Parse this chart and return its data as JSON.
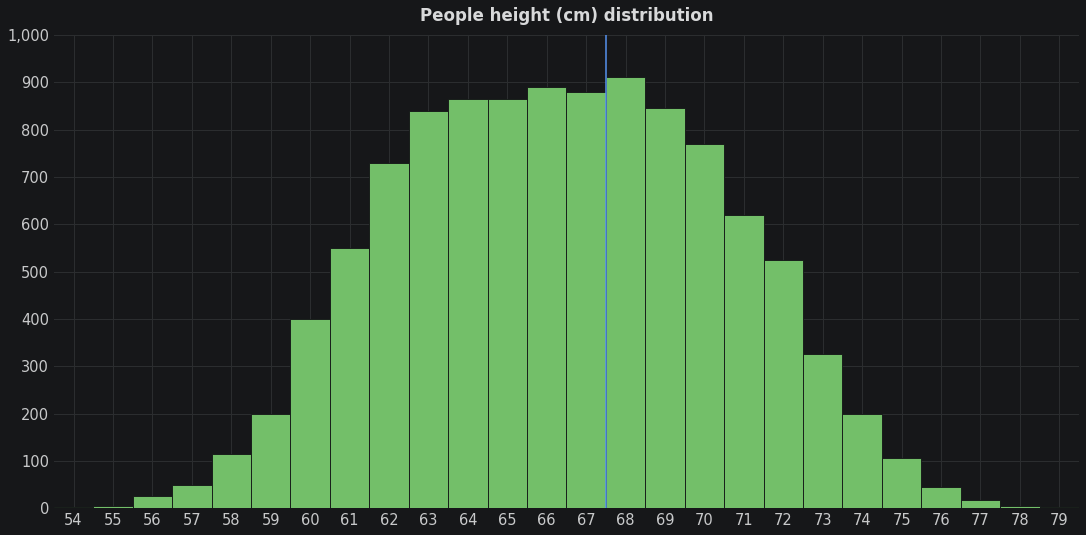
{
  "title": "People height (cm) distribution",
  "background_color": "#161719",
  "bar_color": "#73bf69",
  "bar_edge_color": "#111214",
  "grid_color": "#2c2e30",
  "text_color": "#c8c9ca",
  "title_color": "#d8d9da",
  "centers": [
    54,
    55,
    56,
    57,
    58,
    59,
    60,
    61,
    62,
    63,
    64,
    65,
    66,
    67,
    68,
    69,
    70,
    71,
    72,
    73,
    74,
    75,
    76,
    77,
    78,
    79
  ],
  "values": [
    2,
    5,
    25,
    50,
    115,
    200,
    400,
    550,
    730,
    840,
    865,
    865,
    890,
    880,
    910,
    845,
    770,
    620,
    525,
    325,
    200,
    105,
    45,
    18,
    5,
    2
  ],
  "ylim": [
    0,
    1000
  ],
  "yticks": [
    0,
    100,
    200,
    300,
    400,
    500,
    600,
    700,
    800,
    900,
    1000
  ],
  "ytick_labels": [
    "0",
    "100",
    "200",
    "300",
    "400",
    "500",
    "600",
    "700",
    "800",
    "900",
    "1,000"
  ],
  "xlim_min": 53.5,
  "xlim_max": 79.5,
  "vline_x": 67.5,
  "vline_color": "#5794f2",
  "title_fontsize": 12,
  "tick_fontsize": 10.5
}
